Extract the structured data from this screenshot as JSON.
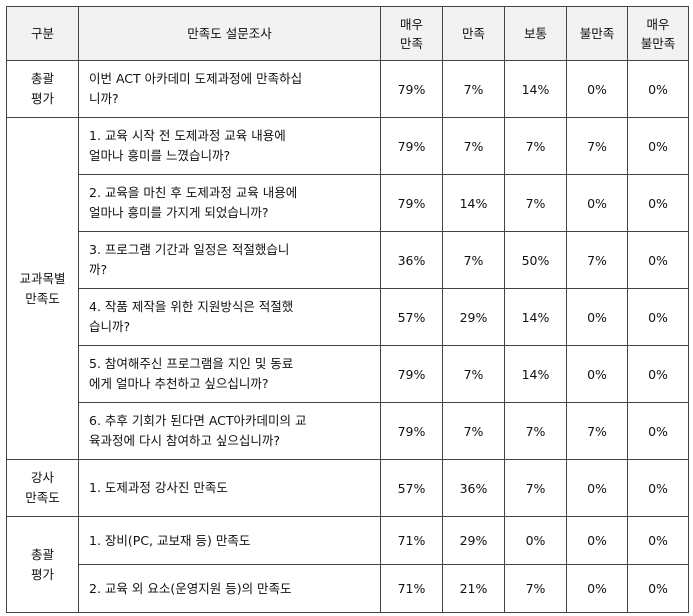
{
  "header": {
    "category": "구분",
    "survey": "만족도 설문조사",
    "very_satisfied": [
      "매우",
      "만족"
    ],
    "satisfied": "만족",
    "neutral": "보통",
    "dissatisfied": "불만족",
    "very_dissatisfied": [
      "매우",
      "불만족"
    ]
  },
  "groups": [
    {
      "category": [
        "총괄",
        "평가"
      ],
      "rows": [
        {
          "q": [
            "이번 ACT 아카데미 도제과정에 만족하십",
            "니까?"
          ],
          "v": [
            "79%",
            "7%",
            "14%",
            "0%",
            "0%"
          ]
        }
      ]
    },
    {
      "category": [
        "교과목별",
        "만족도"
      ],
      "rows": [
        {
          "q": [
            "1. 교육 시작 전 도제과정 교육 내용에",
            "얼마나 흥미를 느꼈습니까?"
          ],
          "v": [
            "79%",
            "7%",
            "7%",
            "7%",
            "0%"
          ]
        },
        {
          "q": [
            "2. 교육을 마친 후 도제과정 교육 내용에",
            "얼마나 흥미를 가지게 되었습니까?"
          ],
          "v": [
            "79%",
            "14%",
            "7%",
            "0%",
            "0%"
          ]
        },
        {
          "q": [
            "3. 프로그램 기간과 일정은 적절했습니",
            "까?"
          ],
          "v": [
            "36%",
            "7%",
            "50%",
            "7%",
            "0%"
          ]
        },
        {
          "q": [
            "4. 작품 제작을 위한 지원방식은 적절했",
            "습니까?"
          ],
          "v": [
            "57%",
            "29%",
            "14%",
            "0%",
            "0%"
          ]
        },
        {
          "q": [
            "5.  참여해주신 프로그램을 지인 및 동료",
            "에게 얼마나 추천하고 싶으십니까?"
          ],
          "v": [
            "79%",
            "7%",
            "14%",
            "0%",
            "0%"
          ]
        },
        {
          "q": [
            "6. 추후 기회가 된다면 ACT아카데미의 교",
            "육과정에 다시 참여하고 싶으십니까?"
          ],
          "v": [
            "79%",
            "7%",
            "7%",
            "7%",
            "0%"
          ]
        }
      ]
    },
    {
      "category": [
        "강사",
        "만족도"
      ],
      "rows": [
        {
          "q": [
            "1. 도제과정 강사진 만족도"
          ],
          "v": [
            "57%",
            "36%",
            "7%",
            "0%",
            "0%"
          ]
        }
      ]
    },
    {
      "category": [
        "총괄",
        "평가"
      ],
      "rows": [
        {
          "q": [
            "1. 장비(PC, 교보재 등) 만족도"
          ],
          "v": [
            "71%",
            "29%",
            "0%",
            "0%",
            "0%"
          ]
        },
        {
          "q": [
            "2. 교육 외 요소(운영지원 등)의 만족도"
          ],
          "v": [
            "71%",
            "21%",
            "7%",
            "0%",
            "0%"
          ]
        }
      ]
    }
  ]
}
